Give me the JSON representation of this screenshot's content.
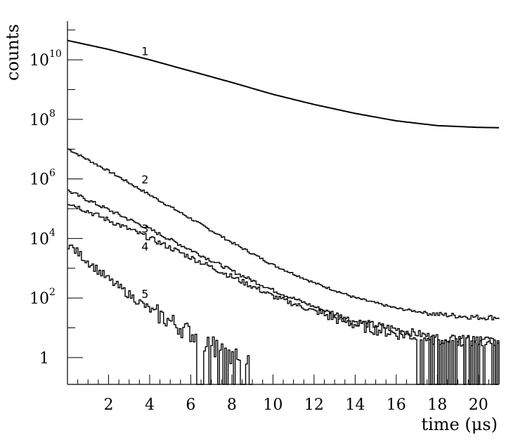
{
  "chart_data": {
    "type": "line",
    "xlabel": "time (μs)",
    "ylabel": "counts",
    "xlim": [
      0,
      21
    ],
    "ylim_log10": [
      -0.9,
      11.3
    ],
    "yscale": "log",
    "grid": false,
    "x_ticks": [
      2,
      4,
      6,
      8,
      10,
      12,
      14,
      16,
      18,
      20
    ],
    "x_tick_labels": [
      "2",
      "4",
      "6",
      "8",
      "10",
      "12",
      "14",
      "16",
      "18",
      "20"
    ],
    "y_ticks": [
      {
        "base": "1",
        "exp": "",
        "log10": 0
      },
      {
        "base": "10",
        "exp": "2",
        "log10": 2
      },
      {
        "base": "10",
        "exp": "4",
        "log10": 4
      },
      {
        "base": "10",
        "exp": "6",
        "log10": 6
      },
      {
        "base": "10",
        "exp": "8",
        "log10": 8
      },
      {
        "base": "10",
        "exp": "10",
        "log10": 10
      }
    ],
    "series": [
      {
        "label": "1",
        "label_at": [
          3.6,
          10.15
        ],
        "points": [
          [
            0,
            10.65
          ],
          [
            2,
            10.35
          ],
          [
            4,
            10.0
          ],
          [
            6,
            9.62
          ],
          [
            8,
            9.24
          ],
          [
            10,
            8.84
          ],
          [
            12,
            8.5
          ],
          [
            14,
            8.2
          ],
          [
            16,
            7.95
          ],
          [
            18,
            7.79
          ],
          [
            20,
            7.73
          ],
          [
            21,
            7.72
          ]
        ]
      },
      {
        "label": "2",
        "label_at": [
          3.6,
          5.85
        ],
        "noise": 0.04,
        "points": [
          [
            0,
            7.0
          ],
          [
            2,
            6.25
          ],
          [
            4,
            5.45
          ],
          [
            6,
            4.65
          ],
          [
            8,
            3.85
          ],
          [
            10,
            3.1
          ],
          [
            12,
            2.5
          ],
          [
            14,
            2.0
          ],
          [
            16,
            1.65
          ],
          [
            18,
            1.45
          ],
          [
            20,
            1.35
          ],
          [
            21,
            1.35
          ]
        ]
      },
      {
        "label": "3",
        "label_at": [
          3.6,
          4.2
        ],
        "noise": 0.06,
        "points": [
          [
            0,
            5.6
          ],
          [
            2,
            4.95
          ],
          [
            4,
            4.3
          ],
          [
            6,
            3.6
          ],
          [
            8,
            2.9
          ],
          [
            10,
            2.25
          ],
          [
            12,
            1.7
          ],
          [
            14,
            1.2
          ],
          [
            16,
            0.95
          ],
          [
            18,
            0.65
          ],
          [
            20,
            0.6
          ],
          [
            21,
            0.6
          ]
        ]
      },
      {
        "label": "4",
        "label_at": [
          3.6,
          3.6
        ],
        "noise": 0.09,
        "points": [
          [
            0,
            5.2
          ],
          [
            2,
            4.6
          ],
          [
            4,
            4.0
          ],
          [
            6,
            3.35
          ],
          [
            8,
            2.7
          ],
          [
            10,
            2.05
          ],
          [
            12,
            1.55
          ],
          [
            14,
            1.1
          ],
          [
            16,
            0.8
          ],
          [
            18,
            0.6
          ],
          [
            20,
            0.55
          ],
          [
            21,
            0.5
          ]
        ]
      },
      {
        "label": "5",
        "label_at": [
          3.6,
          2.0
        ],
        "noise": 0.15,
        "points": [
          [
            0,
            3.8
          ],
          [
            1,
            3.2
          ],
          [
            2,
            2.6
          ],
          [
            3,
            2.1
          ],
          [
            4,
            1.6
          ],
          [
            5,
            1.2
          ],
          [
            6,
            0.8
          ],
          [
            7,
            0.4
          ],
          [
            8,
            0.0
          ],
          [
            9,
            0.0
          ]
        ]
      }
    ]
  }
}
